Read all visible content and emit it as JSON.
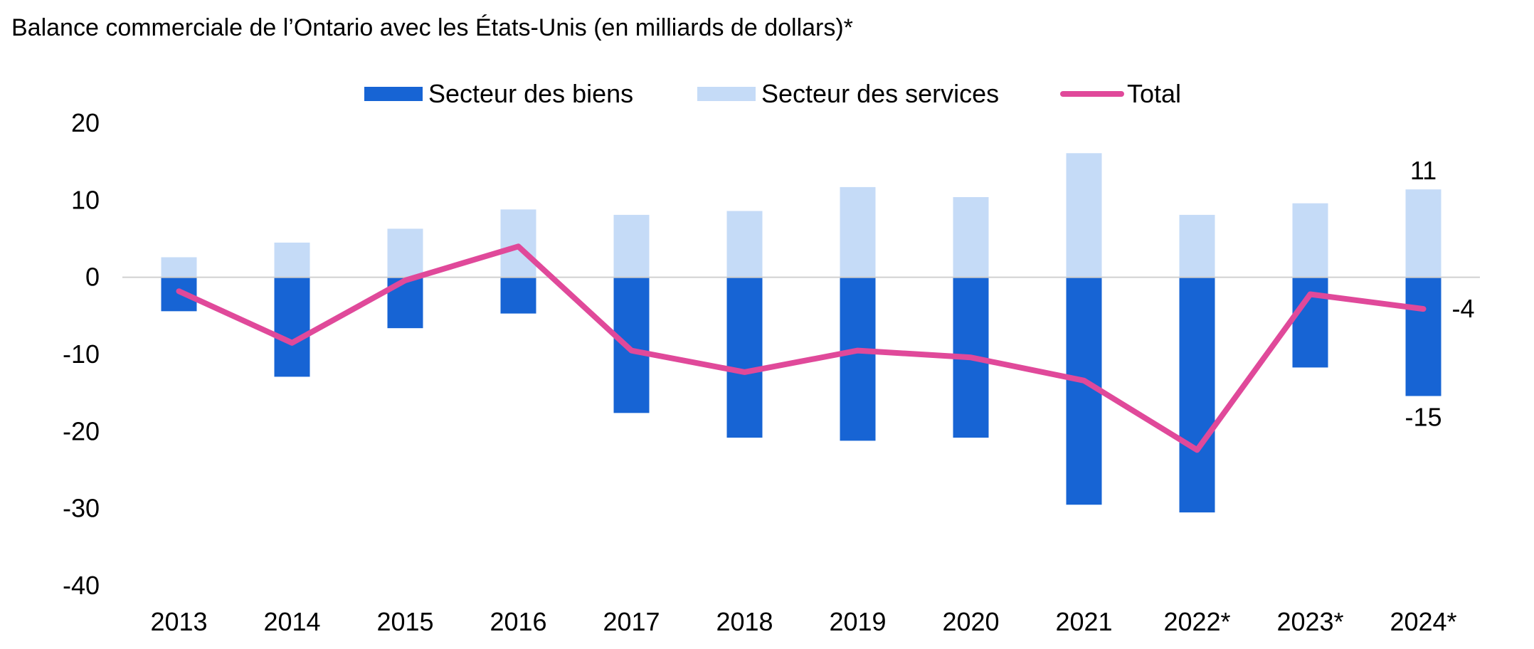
{
  "chart_data": {
    "type": "bar",
    "title": "Balance commerciale de l’Ontario avec les États-Unis (en milliards de dollars)*",
    "categories": [
      "2013",
      "2014",
      "2015",
      "2016",
      "2017",
      "2018",
      "2019",
      "2020",
      "2021",
      "2022*",
      "2023*",
      "2024*"
    ],
    "series": [
      {
        "name": "Secteur des biens",
        "kind": "bar",
        "color": "#1764d4",
        "values": [
          -4.4,
          -12.9,
          -6.6,
          -4.7,
          -17.6,
          -20.8,
          -21.2,
          -20.8,
          -29.5,
          -30.5,
          -11.7,
          -15.4
        ]
      },
      {
        "name": "Secteur des services",
        "kind": "bar",
        "color": "#c5dbf7",
        "values": [
          2.6,
          4.5,
          6.3,
          8.8,
          8.1,
          8.6,
          11.7,
          10.4,
          16.1,
          8.1,
          9.6,
          11.4
        ]
      },
      {
        "name": "Total",
        "kind": "line",
        "color": "#e0499a",
        "values": [
          -1.8,
          -8.5,
          -0.4,
          4.0,
          -9.5,
          -12.3,
          -9.5,
          -10.4,
          -13.4,
          -22.4,
          -2.2,
          -4.1
        ]
      }
    ],
    "ylim": [
      -40,
      20
    ],
    "yticks": [
      20,
      10,
      0,
      -10,
      -20,
      -30,
      -40
    ],
    "grid": false,
    "legend_position": "top",
    "annotations": [
      {
        "text": "11",
        "series": "Secteur des services",
        "category": "2024*",
        "position": "above"
      },
      {
        "text": "-15",
        "series": "Secteur des biens",
        "category": "2024*",
        "position": "below"
      },
      {
        "text": "-4",
        "series": "Total",
        "category": "2024*",
        "position": "right"
      }
    ]
  }
}
